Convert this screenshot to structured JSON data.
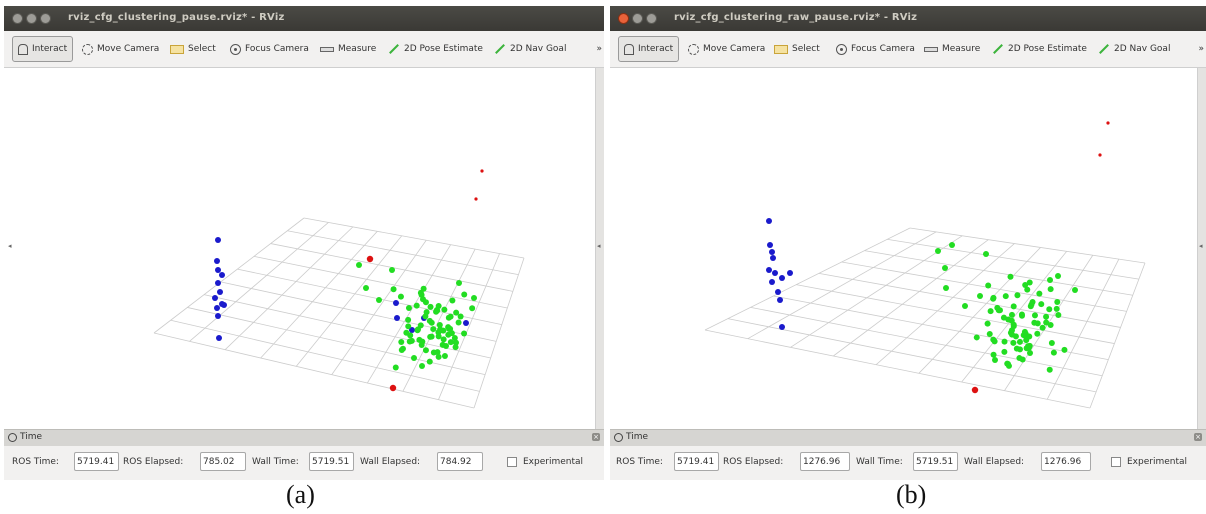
{
  "panels": [
    {
      "window_title": "rviz_cfg_clustering_pause.rviz* - RViz",
      "toolbar": {
        "interact": "Interact",
        "move_camera": "Move Camera",
        "select": "Select",
        "focus_camera": "Focus Camera",
        "measure": "Measure",
        "pose_estimate": "2D Pose Estimate",
        "nav_goal": "2D Nav Goal",
        "more": "»"
      },
      "time_panel": {
        "title": "Time",
        "ros_time_label": "ROS Time:",
        "ros_time": "5719.41",
        "ros_elapsed_label": "ROS Elapsed:",
        "ros_elapsed": "785.02",
        "wall_time_label": "Wall Time:",
        "wall_time": "5719.51",
        "wall_elapsed_label": "Wall Elapsed:",
        "wall_elapsed": "784.92",
        "experimental_label": "Experimental"
      },
      "figure_label": "(a)"
    },
    {
      "window_title": "rviz_cfg_clustering_raw_pause.rviz* - RViz",
      "toolbar": {
        "interact": "Interact",
        "move_camera": "Move Camera",
        "select": "Select",
        "focus_camera": "Focus Camera",
        "measure": "Measure",
        "pose_estimate": "2D Pose Estimate",
        "nav_goal": "2D Nav Goal",
        "more": "»"
      },
      "time_panel": {
        "title": "Time",
        "ros_time_label": "ROS Time:",
        "ros_time": "5719.41",
        "ros_elapsed_label": "ROS Elapsed:",
        "ros_elapsed": "1276.96",
        "wall_time_label": "Wall Time:",
        "wall_time": "5719.51",
        "wall_elapsed_label": "Wall Elapsed:",
        "wall_elapsed": "1276.96",
        "experimental_label": "Experimental"
      },
      "figure_label": "(b)"
    }
  ],
  "colors": {
    "cluster_blue": "#1a1acc",
    "cluster_green": "#22dd22",
    "outlier_red": "#dd1111",
    "grid": "#cccccc"
  }
}
